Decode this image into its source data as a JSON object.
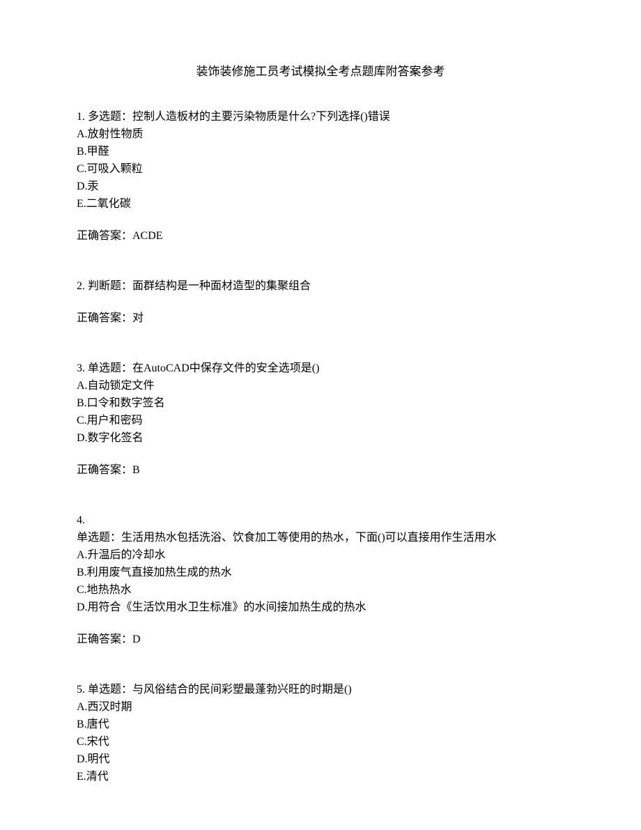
{
  "title": "装饰装修施工员考试模拟全考点题库附答案参考",
  "questions": [
    {
      "number": "1.",
      "type": "多选题：",
      "stem": "控制人造板材的主要污染物质是什么?下列选择()错误",
      "options": [
        "A.放射性物质",
        "B.甲醛",
        "C.可吸入颗粒",
        "D.汞",
        "E.二氧化碳"
      ],
      "answerLabel": "正确答案：",
      "answer": "ACDE"
    },
    {
      "number": "2.",
      "type": "判断题：",
      "stem": "面群结构是一种面材造型的集聚组合",
      "options": [],
      "answerLabel": "正确答案：",
      "answer": "对"
    },
    {
      "number": "3.",
      "type": "单选题：",
      "stem": "在AutoCAD中保存文件的安全选项是()",
      "options": [
        "A.自动锁定文件",
        "B.口令和数字签名",
        "C.用户和密码",
        "D.数字化签名"
      ],
      "answerLabel": "正确答案：",
      "answer": "B"
    },
    {
      "number": "4.",
      "type": "单选题：",
      "stem": "生活用热水包括洗浴、饮食加工等使用的热水，下面()可以直接用作生活用水",
      "options": [
        "A.升温后的冷却水",
        "B.利用废气直接加热生成的热水",
        "C.地热热水",
        "D.用符合《生活饮用水卫生标准》的水间接加热生成的热水"
      ],
      "answerLabel": "正确答案：",
      "answer": "D",
      "breakAfterNumber": true
    },
    {
      "number": "5.",
      "type": "单选题：",
      "stem": "与风俗结合的民间彩塑最蓬勃兴旺的时期是()",
      "options": [
        "A.西汉时期",
        "B.唐代",
        "C.宋代",
        "D.明代",
        "E.清代"
      ],
      "answerLabel": "",
      "answer": ""
    }
  ]
}
